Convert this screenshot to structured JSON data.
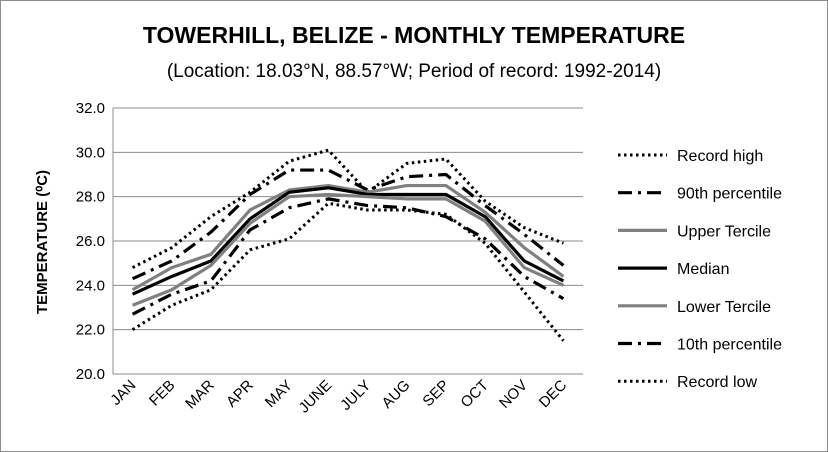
{
  "chart_data": {
    "type": "line",
    "title": "TOWERHILL, BELIZE - MONTHLY TEMPERATURE",
    "subtitle": "(Location: 18.03°N, 88.57°W; Period of record: 1992-2014)",
    "ylabel": "TEMPERATURE (⁰C)",
    "xlabel": "",
    "ylim": [
      20.0,
      32.0
    ],
    "yticks": [
      "20.0",
      "22.0",
      "24.0",
      "26.0",
      "28.0",
      "30.0",
      "32.0"
    ],
    "categories": [
      "JAN",
      "FEB",
      "MAR",
      "APR",
      "MAY",
      "JUNE",
      "JULY",
      "AUG",
      "SEP",
      "OCT",
      "NOV",
      "DEC"
    ],
    "grid": "horizontal",
    "legend_position": "right",
    "series": [
      {
        "name": "Record high",
        "color": "#000000",
        "style": "dotted",
        "values": [
          24.8,
          25.7,
          27.1,
          28.2,
          29.6,
          30.1,
          28.2,
          29.5,
          29.7,
          27.8,
          26.6,
          25.9
        ]
      },
      {
        "name": "90th percentile",
        "color": "#000000",
        "style": "dashdot",
        "values": [
          24.3,
          25.1,
          26.4,
          28.1,
          29.2,
          29.2,
          28.3,
          28.9,
          29.0,
          27.6,
          26.3,
          24.9
        ]
      },
      {
        "name": "Upper Tercile",
        "color": "#808080",
        "style": "solid",
        "values": [
          23.8,
          24.8,
          25.4,
          27.4,
          28.3,
          28.5,
          28.2,
          28.5,
          28.5,
          27.3,
          25.7,
          24.4
        ]
      },
      {
        "name": "Median",
        "color": "#000000",
        "style": "solid",
        "values": [
          23.6,
          24.4,
          25.1,
          27.0,
          28.2,
          28.4,
          28.1,
          28.1,
          28.1,
          27.1,
          25.1,
          24.2
        ]
      },
      {
        "name": "Lower Tercile",
        "color": "#808080",
        "style": "solid",
        "values": [
          23.1,
          23.8,
          24.9,
          26.8,
          28.0,
          28.1,
          28.0,
          27.9,
          27.9,
          26.9,
          24.8,
          24.0
        ]
      },
      {
        "name": "10th percentile",
        "color": "#000000",
        "style": "dashdot",
        "values": [
          22.7,
          23.6,
          24.2,
          26.5,
          27.5,
          27.9,
          27.6,
          27.5,
          27.1,
          26.1,
          24.4,
          23.4
        ]
      },
      {
        "name": "Record low",
        "color": "#000000",
        "style": "dotted",
        "values": [
          22.0,
          23.1,
          23.8,
          25.6,
          26.1,
          27.7,
          27.4,
          27.4,
          27.2,
          25.9,
          23.7,
          21.5
        ]
      }
    ]
  }
}
